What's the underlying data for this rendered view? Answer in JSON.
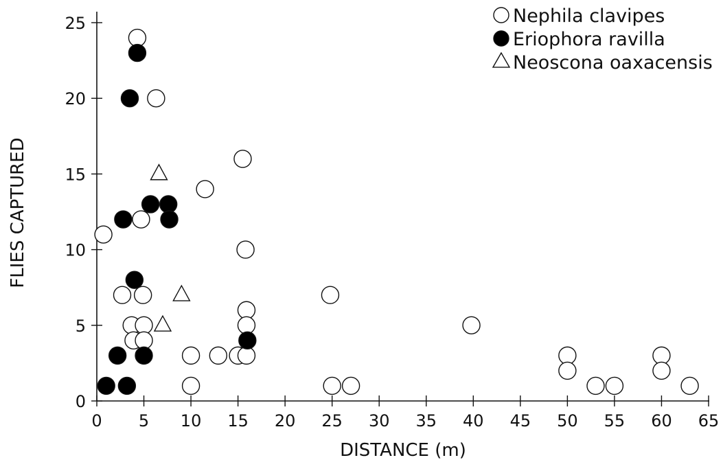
{
  "chart_data": {
    "type": "scatter",
    "xlabel": "DISTANCE (m)",
    "ylabel": "FLIES CAPTURED",
    "xlim": [
      0,
      65
    ],
    "ylim": [
      0,
      25
    ],
    "xticks": [
      0,
      5,
      10,
      15,
      20,
      25,
      30,
      35,
      40,
      45,
      50,
      55,
      60,
      65
    ],
    "yticks": [
      0,
      5,
      10,
      15,
      20,
      25
    ],
    "grid": false,
    "legend_position": "top-right",
    "series": [
      {
        "name": "Nephila clavipes",
        "marker": "open-circle",
        "points": [
          [
            0.7,
            11
          ],
          [
            4.3,
            24
          ],
          [
            6.3,
            20
          ],
          [
            4.7,
            12
          ],
          [
            2.7,
            7
          ],
          [
            4.9,
            7
          ],
          [
            3.7,
            5
          ],
          [
            5.0,
            5
          ],
          [
            3.9,
            4
          ],
          [
            5.0,
            4
          ],
          [
            10.0,
            3
          ],
          [
            10.0,
            1
          ],
          [
            11.5,
            14
          ],
          [
            12.9,
            3
          ],
          [
            15.0,
            3
          ],
          [
            15.5,
            16
          ],
          [
            15.8,
            10
          ],
          [
            15.9,
            6
          ],
          [
            15.9,
            5
          ],
          [
            15.9,
            3
          ],
          [
            24.8,
            7
          ],
          [
            25.0,
            1
          ],
          [
            27.0,
            1
          ],
          [
            39.8,
            5
          ],
          [
            50.0,
            3
          ],
          [
            50.0,
            2
          ],
          [
            53.0,
            1
          ],
          [
            55.0,
            1
          ],
          [
            60.0,
            3
          ],
          [
            60.0,
            2
          ],
          [
            63.0,
            1
          ]
        ]
      },
      {
        "name": "Eriophora ravilla",
        "marker": "filled-circle",
        "points": [
          [
            4.3,
            23
          ],
          [
            3.5,
            20
          ],
          [
            2.8,
            12
          ],
          [
            5.7,
            13
          ],
          [
            7.6,
            13
          ],
          [
            7.7,
            12
          ],
          [
            4.0,
            8
          ],
          [
            2.2,
            3
          ],
          [
            5.0,
            3
          ],
          [
            1.0,
            1
          ],
          [
            3.2,
            1
          ],
          [
            16.0,
            4
          ]
        ]
      },
      {
        "name": "Neoscona oaxacensis",
        "marker": "open-triangle",
        "points": [
          [
            6.6,
            15
          ],
          [
            9.0,
            7
          ],
          [
            7.0,
            5
          ]
        ]
      }
    ]
  },
  "legend": [
    {
      "label": "Nephila clavipes",
      "marker": "open-circle"
    },
    {
      "label": "Eriophora ravilla",
      "marker": "filled-circle"
    },
    {
      "label": "Neoscona oaxacensis",
      "marker": "open-triangle"
    }
  ]
}
